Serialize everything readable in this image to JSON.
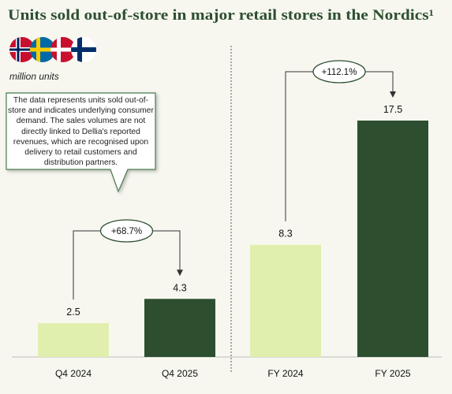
{
  "title": "Units sold out-of-store in major retail stores in the Nordics¹",
  "unit_label": "million units",
  "note": "The data represents units sold out-of-store and indicates underlying consumer demand. The sales volumes are not directly linked to Dellia's reported revenues, which are recognised upon delivery to retail customers and distribution partners.",
  "chart_data": [
    {
      "type": "bar",
      "categories": [
        "Q4 2024",
        "Q4 2025"
      ],
      "values": [
        2.5,
        4.3
      ],
      "colors": [
        "#e0efad",
        "#2d4f30"
      ],
      "annotation": "+68.7%"
    },
    {
      "type": "bar",
      "categories": [
        "FY 2024",
        "FY 2025"
      ],
      "values": [
        8.3,
        17.5
      ],
      "colors": [
        "#e0efad",
        "#2d4f30"
      ],
      "annotation": "+112.1%"
    }
  ]
}
